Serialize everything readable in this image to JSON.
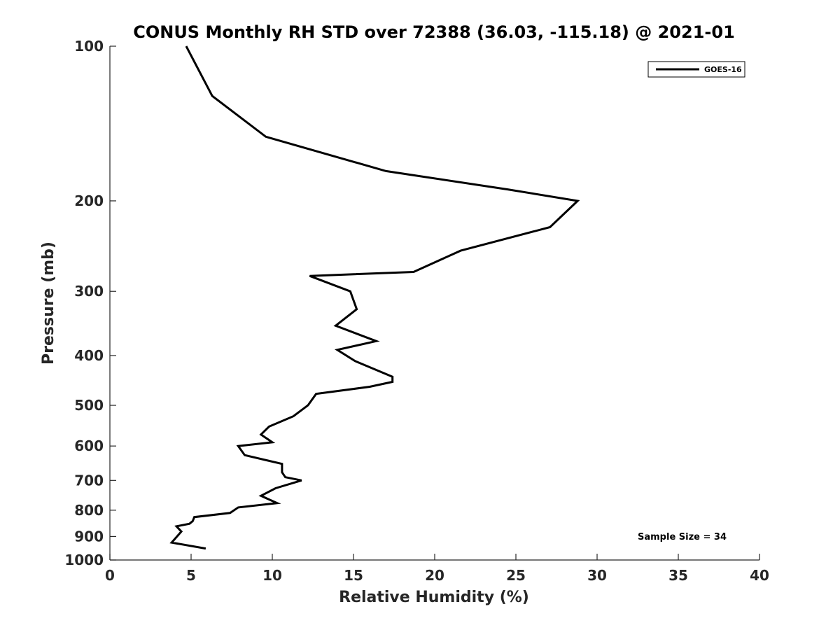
{
  "chart_data": {
    "type": "line",
    "title": "CONUS Monthly RH STD over 72388 (36.03, -115.18) @ 2021-01",
    "xlabel": "Relative Humidity (%)",
    "ylabel": "Pressure (mb)",
    "xlim": [
      0,
      40
    ],
    "ylim": [
      100,
      1000
    ],
    "y_scale": "log",
    "y_reversed": true,
    "x_ticks": [
      0,
      5,
      10,
      15,
      20,
      25,
      30,
      35,
      40
    ],
    "x_tick_labels": [
      "0",
      "5",
      "10",
      "15",
      "20",
      "25",
      "30",
      "35",
      "40"
    ],
    "y_ticks": [
      100,
      200,
      300,
      400,
      500,
      600,
      700,
      800,
      900,
      1000
    ],
    "y_tick_labels": [
      "100",
      "200",
      "300",
      "400",
      "500",
      "600",
      "700",
      "800",
      "900",
      "1000"
    ],
    "grid": false,
    "legend_position": "top-right",
    "annotation": "Sample Size = 34",
    "series": [
      {
        "name": "GOES-16",
        "color": "#000000",
        "points": [
          [
            4.7,
            100
          ],
          [
            6.3,
            125
          ],
          [
            9.6,
            150
          ],
          [
            17.0,
            175
          ],
          [
            24.5,
            190
          ],
          [
            28.8,
            200
          ],
          [
            27.1,
            225
          ],
          [
            21.6,
            250
          ],
          [
            18.7,
            275
          ],
          [
            12.3,
            280
          ],
          [
            14.8,
            300
          ],
          [
            15.2,
            325
          ],
          [
            13.9,
            350
          ],
          [
            16.4,
            375
          ],
          [
            14.0,
            390
          ],
          [
            15.1,
            410
          ],
          [
            17.4,
            440
          ],
          [
            17.4,
            450
          ],
          [
            16.0,
            460
          ],
          [
            12.7,
            475
          ],
          [
            12.2,
            500
          ],
          [
            11.3,
            525
          ],
          [
            9.8,
            550
          ],
          [
            9.3,
            570
          ],
          [
            10.0,
            590
          ],
          [
            7.9,
            600
          ],
          [
            8.3,
            625
          ],
          [
            10.6,
            650
          ],
          [
            10.6,
            675
          ],
          [
            10.8,
            690
          ],
          [
            11.8,
            700
          ],
          [
            10.2,
            725
          ],
          [
            9.3,
            750
          ],
          [
            10.3,
            775
          ],
          [
            7.9,
            790
          ],
          [
            7.4,
            810
          ],
          [
            5.2,
            825
          ],
          [
            5.1,
            840
          ],
          [
            4.9,
            850
          ],
          [
            4.1,
            860
          ],
          [
            4.4,
            880
          ],
          [
            3.8,
            925
          ],
          [
            5.9,
            950
          ]
        ]
      }
    ]
  }
}
